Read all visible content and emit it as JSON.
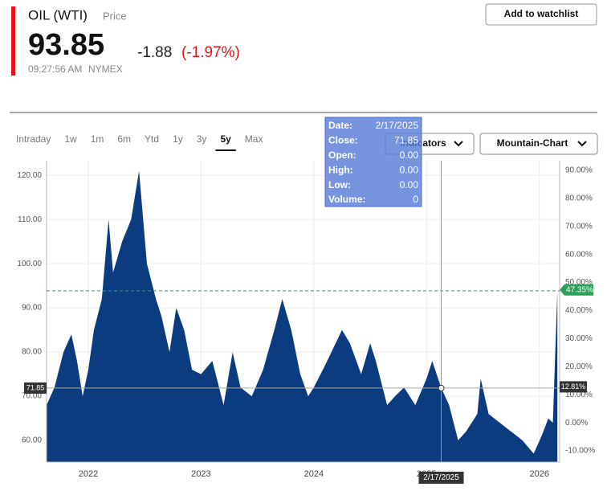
{
  "header": {
    "title": "OIL (WTI)",
    "subtitle": "Price",
    "price": "93.85",
    "change": "-1.88",
    "change_percent": "(-1.97%)",
    "time": "09:27:56 AM",
    "exchange": "NYMEX"
  },
  "watchlist_button": "Add to watchlist",
  "tabs": [
    "Intraday",
    "1w",
    "1m",
    "6m",
    "Ytd",
    "1y",
    "3y",
    "5y",
    "Max"
  ],
  "active_tab": "5y",
  "dropdowns": [
    "Indicators",
    "Mountain-Chart"
  ],
  "tooltip": [
    [
      "Date:",
      "2/17/2025"
    ],
    [
      "Close:",
      "71.85"
    ],
    [
      "Open:",
      "0.00"
    ],
    [
      "High:",
      "0.00"
    ],
    [
      "Low:",
      "0.00"
    ],
    [
      "Volume:",
      "0"
    ]
  ],
  "chart_data": {
    "type": "area",
    "x": [
      2021.63,
      2021.7,
      2021.78,
      2021.85,
      2021.9,
      2021.95,
      2022.0,
      2022.05,
      2022.12,
      2022.18,
      2022.22,
      2022.3,
      2022.38,
      2022.45,
      2022.52,
      2022.6,
      2022.65,
      2022.72,
      2022.78,
      2022.85,
      2022.92,
      2023.0,
      2023.1,
      2023.2,
      2023.28,
      2023.35,
      2023.45,
      2023.55,
      2023.65,
      2023.72,
      2023.8,
      2023.88,
      2023.95,
      2024.0,
      2024.1,
      2024.25,
      2024.32,
      2024.42,
      2024.5,
      2024.55,
      2024.65,
      2024.72,
      2024.8,
      2024.9,
      2025.0,
      2025.05,
      2025.13,
      2025.2,
      2025.28,
      2025.35,
      2025.45,
      2025.48,
      2025.55,
      2025.65,
      2025.75,
      2025.85,
      2025.95,
      2026.02,
      2026.08,
      2026.12,
      2026.16
    ],
    "series": [
      {
        "name": "OIL (WTI)",
        "color": "#0b3c80",
        "values": [
          68,
          72,
          80,
          84,
          78,
          70,
          76,
          85,
          92,
          110,
          98,
          105,
          110,
          121,
          100,
          92,
          88,
          80,
          90,
          85,
          76,
          75,
          78,
          68,
          80,
          72,
          70,
          76,
          85,
          92,
          85,
          75,
          70,
          72,
          77,
          85,
          82,
          75,
          82,
          78,
          68,
          70,
          72,
          68,
          74,
          78,
          71.85,
          68,
          60,
          62,
          66,
          74,
          66,
          64,
          62,
          60,
          57,
          61,
          65,
          64,
          93.85
        ]
      }
    ],
    "xlim": [
      2021.63,
      2026.18
    ],
    "xticks": [
      2022,
      2023,
      2024,
      2025,
      2026
    ],
    "ylim": [
      55.1,
      123.3
    ],
    "yticks": [
      {
        "value": 60,
        "label": "60.00"
      },
      {
        "value": 70,
        "label": "70.00"
      },
      {
        "value": 80,
        "label": "80.00"
      },
      {
        "value": 90,
        "label": "90.00"
      },
      {
        "value": 100,
        "label": "100.00"
      },
      {
        "value": 110,
        "label": "110.00"
      },
      {
        "value": 120,
        "label": "120.00"
      }
    ],
    "y2lim": [
      -14.0,
      93.4
    ],
    "y2ticks": [
      {
        "value": -10,
        "label": "-10.00%"
      },
      {
        "value": 0,
        "label": "0.00%"
      },
      {
        "value": 10,
        "label": "10.00%"
      },
      {
        "value": 20,
        "label": "20.00%"
      },
      {
        "value": 30,
        "label": "30.00%"
      },
      {
        "value": 40,
        "label": "40.00%"
      },
      {
        "value": 50,
        "label": "50.00%"
      },
      {
        "value": 60,
        "label": "60.00%"
      },
      {
        "value": 70,
        "label": "70.00%"
      },
      {
        "value": 80,
        "label": "80.00%"
      },
      {
        "value": 90,
        "label": "90.00%"
      }
    ],
    "grid": true,
    "last_line": {
      "y": 93.85,
      "y2": 47.35,
      "y2_label": "47.35%",
      "color": "#2e9e5b"
    },
    "crosshair": {
      "x": 2025.13,
      "x_label": "2/17/2025",
      "y": 71.85,
      "y2": 12.81,
      "y2_label": "12.81%"
    }
  }
}
